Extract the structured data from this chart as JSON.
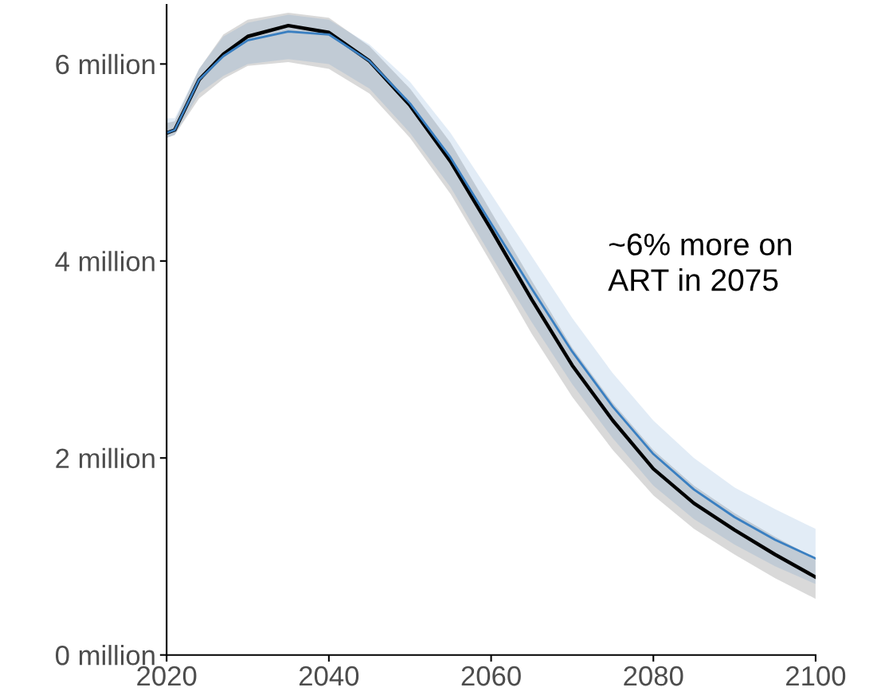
{
  "chart_data": {
    "type": "line",
    "x": [
      2020,
      2021,
      2024,
      2027,
      2030,
      2035,
      2040,
      2045,
      2050,
      2055,
      2060,
      2065,
      2070,
      2075,
      2080,
      2085,
      2090,
      2095,
      2100
    ],
    "series": [
      {
        "color": "#000000",
        "values": [
          5.3,
          5.33,
          5.84,
          6.1,
          6.28,
          6.39,
          6.32,
          6.03,
          5.58,
          5.01,
          4.32,
          3.61,
          2.94,
          2.38,
          1.89,
          1.54,
          1.27,
          1.02,
          0.79
        ],
        "lower": [
          5.25,
          5.28,
          5.65,
          5.85,
          5.98,
          6.02,
          5.95,
          5.7,
          5.25,
          4.68,
          3.98,
          3.26,
          2.62,
          2.08,
          1.62,
          1.28,
          1.02,
          0.78,
          0.57
        ],
        "upper": [
          5.4,
          5.42,
          5.95,
          6.3,
          6.45,
          6.52,
          6.47,
          6.18,
          5.75,
          5.2,
          4.5,
          3.8,
          3.12,
          2.56,
          2.08,
          1.72,
          1.44,
          1.2,
          0.98
        ]
      },
      {
        "color": "#3a7fc1",
        "values": [
          5.3,
          5.33,
          5.84,
          6.08,
          6.24,
          6.33,
          6.3,
          6.03,
          5.6,
          5.05,
          4.38,
          3.72,
          3.08,
          2.52,
          2.04,
          1.68,
          1.4,
          1.17,
          0.98
        ],
        "lower": [
          5.25,
          5.28,
          5.7,
          5.88,
          6.0,
          6.05,
          6.0,
          5.75,
          5.3,
          4.75,
          4.05,
          3.38,
          2.75,
          2.2,
          1.72,
          1.38,
          1.12,
          0.9,
          0.72
        ],
        "upper": [
          5.45,
          5.45,
          5.95,
          6.28,
          6.42,
          6.5,
          6.45,
          6.2,
          5.82,
          5.3,
          4.68,
          4.05,
          3.42,
          2.86,
          2.38,
          2.0,
          1.7,
          1.48,
          1.28
        ]
      }
    ],
    "xlim": [
      2020,
      2100
    ],
    "xticks": [
      2020,
      2040,
      2060,
      2080,
      2100
    ],
    "ylim": [
      0,
      6.6
    ],
    "yticks": [
      {
        "value": 0,
        "label": "0 million"
      },
      {
        "value": 2,
        "label": "2 million"
      },
      {
        "value": 4,
        "label": "4 million"
      },
      {
        "value": 6,
        "label": "6 million"
      }
    ],
    "annotations": [
      "~6% more on\nART in 2075"
    ],
    "grid": false,
    "legend": false
  }
}
